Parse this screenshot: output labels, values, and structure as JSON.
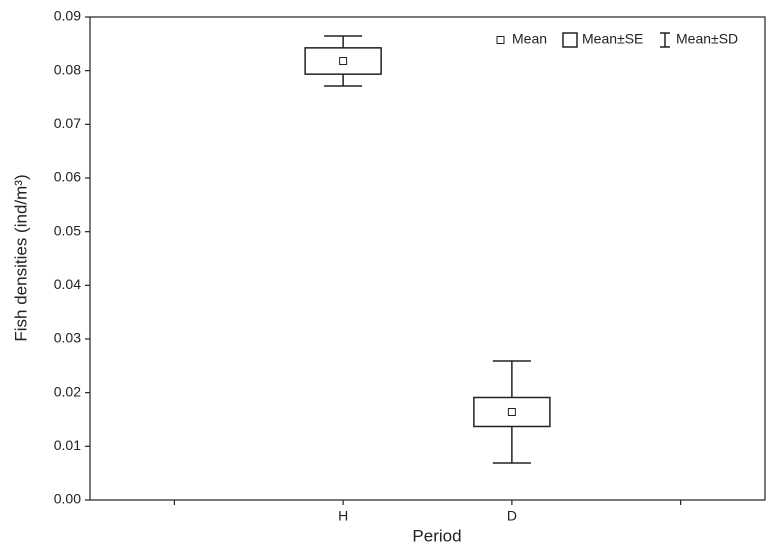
{
  "chart_data": {
    "type": "box",
    "xlabel": "Period",
    "ylabel": "Fish densities (ind/m³)",
    "categories": [
      null,
      "H",
      "D",
      null
    ],
    "series": [
      {
        "name": "Mean",
        "values": [
          null,
          0.0818,
          0.0164,
          null
        ]
      },
      {
        "name": "Mean±SE",
        "values": [
          null,
          0.00245,
          0.0027,
          null
        ]
      },
      {
        "name": "Mean±SD",
        "values": [
          null,
          0.00465,
          0.0095,
          null
        ]
      }
    ],
    "ylim": [
      0,
      0.09
    ],
    "yticks": [
      {
        "value": 0,
        "label": "0.00"
      },
      0.01,
      0.02,
      0.03,
      0.04,
      0.05,
      0.06,
      0.07,
      0.08,
      0.09
    ],
    "color": "#222222"
  }
}
